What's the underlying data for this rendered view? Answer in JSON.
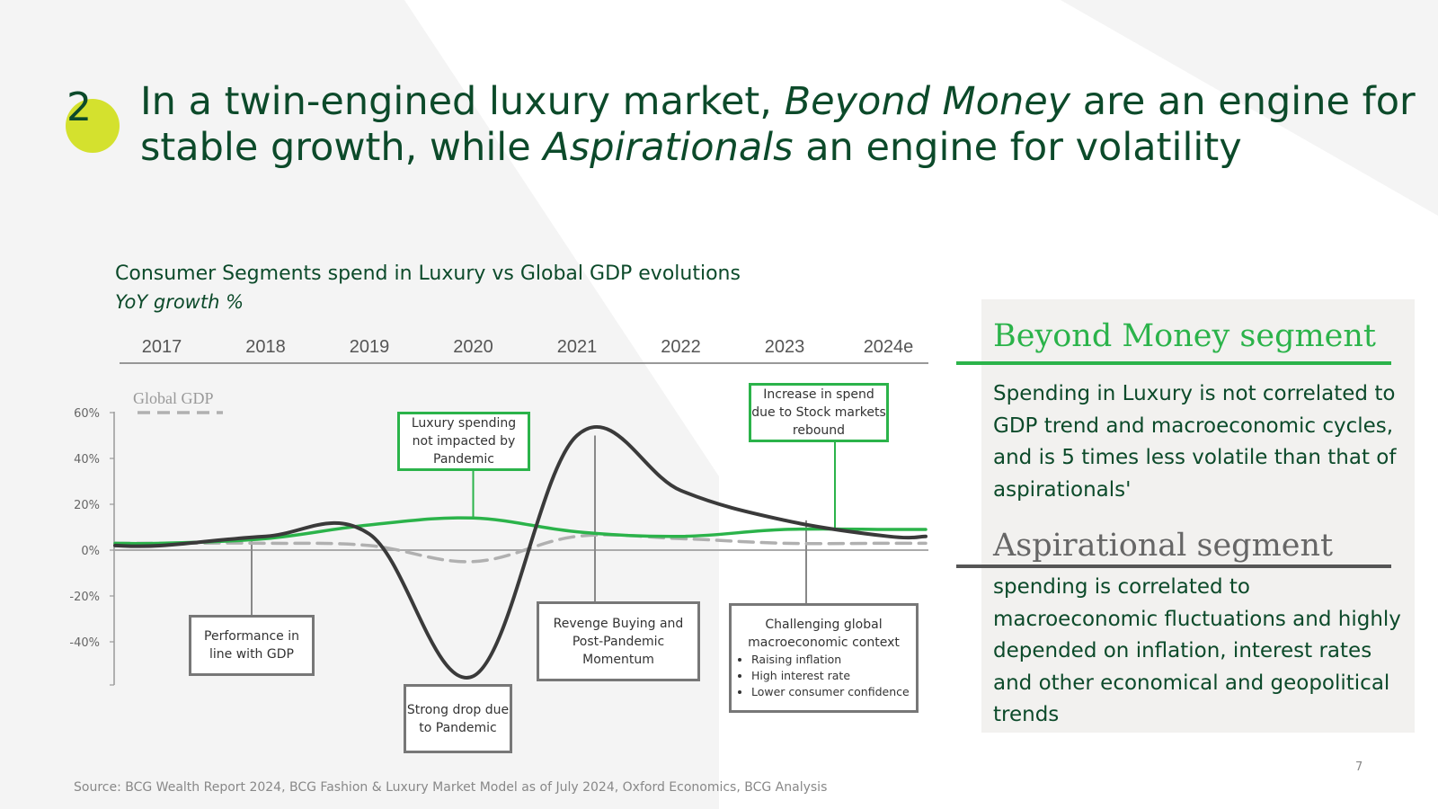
{
  "slide": {
    "number": "2",
    "title": {
      "part1": "In a twin-engined luxury market, ",
      "em1": "Beyond Money",
      "part2": " are an engine for stable growth, while ",
      "em2": "Aspirationals",
      "part3": " an engine for volatility"
    },
    "chart_title": "Consumer Segments spend in Luxury vs Global GDP evolutions",
    "chart_subtitle": "YoY growth %",
    "source": "Source: BCG Wealth Report 2024, BCG Fashion & Luxury Market Model as of July 2024, Oxford Economics, BCG Analysis",
    "page_number": "7"
  },
  "colors": {
    "dark_green": "#0c4a2a",
    "bright_green": "#2bb34a",
    "badge": "#d4e12e",
    "dark_line": "#3a3a3a",
    "gdp_line": "#b0b0b0",
    "panel": "#f2f1ef"
  },
  "chart_data": {
    "type": "line",
    "x": [
      "2017",
      "2018",
      "2019",
      "2020",
      "2021",
      "2022",
      "2023",
      "2024e"
    ],
    "yticks": [
      "60%",
      "40%",
      "20%",
      "0%",
      "-20%",
      "-40%"
    ],
    "ylim": [
      -60,
      60
    ],
    "legend": "Global GDP",
    "legend_position": "top-left",
    "series": [
      {
        "name": "Global GDP",
        "style": "dashed",
        "values": [
          3,
          3,
          2,
          -5,
          6,
          5,
          3,
          3
        ]
      },
      {
        "name": "Beyond Money segment",
        "style": "solid",
        "values": [
          3,
          5,
          11,
          14,
          8,
          6,
          9,
          9
        ]
      },
      {
        "name": "Aspirational segment",
        "style": "solid",
        "values": [
          2,
          6,
          7,
          -55,
          50,
          26,
          13,
          6
        ]
      }
    ],
    "annotations": [
      {
        "label": "Luxury spending not impacted by Pandemic",
        "x": "2020",
        "y": 14,
        "color": "green"
      },
      {
        "label": "Increase in spend due to Stock markets rebound",
        "x": "2024e",
        "y": 9,
        "color": "green"
      },
      {
        "label": "Performance in line with GDP",
        "x": "2018",
        "y": 3,
        "color": "gray"
      },
      {
        "label": "Strong drop due to Pandemic",
        "x": "2020",
        "y": -55,
        "color": "gray"
      },
      {
        "label": "Revenge Buying and Post-Pandemic Momentum",
        "x": "2021",
        "y": 50,
        "color": "gray"
      },
      {
        "label": "Challenging global macroeconomic context",
        "x": "2023",
        "y": 13,
        "color": "gray",
        "bullets": [
          "Raising inflation",
          "High interest rate",
          "Lower consumer confidence"
        ]
      }
    ]
  },
  "panel": {
    "beyond_title": "Beyond Money segment",
    "beyond_text": "Spending in Luxury is not correlated to GDP trend and macroeconomic cycles, and is 5 times less volatile than that of aspirationals'",
    "asp_title": "Aspirational segment",
    "asp_text": "spending is correlated to macroeconomic fluctuations and highly depended on inflation, interest rates and other economical and geopolitical trends"
  }
}
